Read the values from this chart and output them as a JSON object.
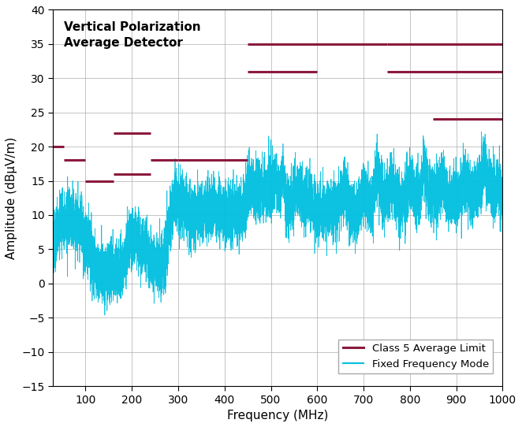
{
  "title": "Vertical Polarization\nAverage Detector",
  "xlabel": "Frequency (MHz)",
  "ylabel": "Amplitude (dBµV/m)",
  "xlim": [
    30,
    1000
  ],
  "ylim": [
    -15,
    40
  ],
  "xticks": [
    100,
    200,
    300,
    400,
    500,
    600,
    700,
    800,
    900,
    1000
  ],
  "yticks": [
    -15,
    -10,
    -5,
    0,
    5,
    10,
    15,
    20,
    25,
    30,
    35,
    40
  ],
  "limit_color": "#8B1A3C",
  "signal_color": "#00BFDF",
  "background_color": "#FFFFFF",
  "grid_color": "#AAAAAA",
  "limit_lines": [
    {
      "x1": 30,
      "x2": 54,
      "y": 20.0
    },
    {
      "x1": 54,
      "x2": 100,
      "y": 18.0
    },
    {
      "x1": 100,
      "x2": 160,
      "y": 15.0
    },
    {
      "x1": 160,
      "x2": 240,
      "y": 16.0
    },
    {
      "x1": 160,
      "x2": 240,
      "y": 22.0
    },
    {
      "x1": 240,
      "x2": 300,
      "y": 18.0
    },
    {
      "x1": 300,
      "x2": 450,
      "y": 18.0
    },
    {
      "x1": 450,
      "x2": 600,
      "y": 31.0
    },
    {
      "x1": 450,
      "x2": 750,
      "y": 35.0
    },
    {
      "x1": 750,
      "x2": 1000,
      "y": 31.0
    },
    {
      "x1": 750,
      "x2": 1000,
      "y": 35.0
    },
    {
      "x1": 850,
      "x2": 1000,
      "y": 24.0
    }
  ],
  "legend_entries": [
    "Class 5 Average Limit",
    "Fixed Frequency Mode"
  ],
  "title_fontsize": 11,
  "axis_fontsize": 11,
  "tick_fontsize": 10
}
